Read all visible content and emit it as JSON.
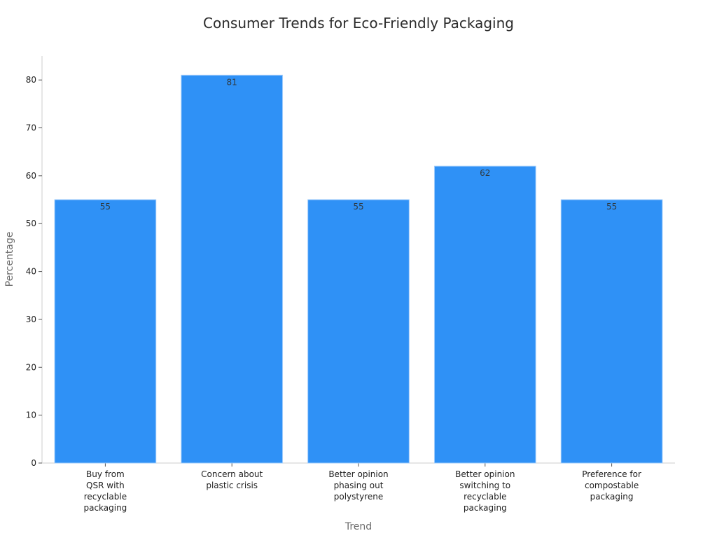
{
  "chart_data": {
    "type": "bar",
    "title": "Consumer Trends for Eco-Friendly Packaging",
    "xlabel": "Trend",
    "ylabel": "Percentage",
    "categories": [
      "Buy from QSR with recyclable packaging",
      "Concern about plastic crisis",
      "Better opinion phasing out polystyrene",
      "Better opinion switching to recyclable packaging",
      "Preference for compostable packaging"
    ],
    "category_lines": [
      [
        "Buy from",
        "QSR with",
        "recyclable",
        "packaging"
      ],
      [
        "Concern about",
        "plastic crisis"
      ],
      [
        "Better opinion",
        "phasing out",
        "polystyrene"
      ],
      [
        "Better opinion",
        "switching to",
        "recyclable",
        "packaging"
      ],
      [
        "Preference for",
        "compostable",
        "packaging"
      ]
    ],
    "values": [
      55,
      81,
      55,
      62,
      55
    ],
    "data_labels": [
      "55",
      "81",
      "55",
      "62",
      "55"
    ],
    "yticks": [
      0,
      10,
      20,
      30,
      40,
      50,
      60,
      70,
      80
    ],
    "ylim": [
      0,
      85
    ],
    "grid": false,
    "legend": "none",
    "colors": {
      "bar": "#2f91f6",
      "bar_edge": "#9ecbfb",
      "axis": "#cccccc",
      "tick": "#222222"
    }
  }
}
